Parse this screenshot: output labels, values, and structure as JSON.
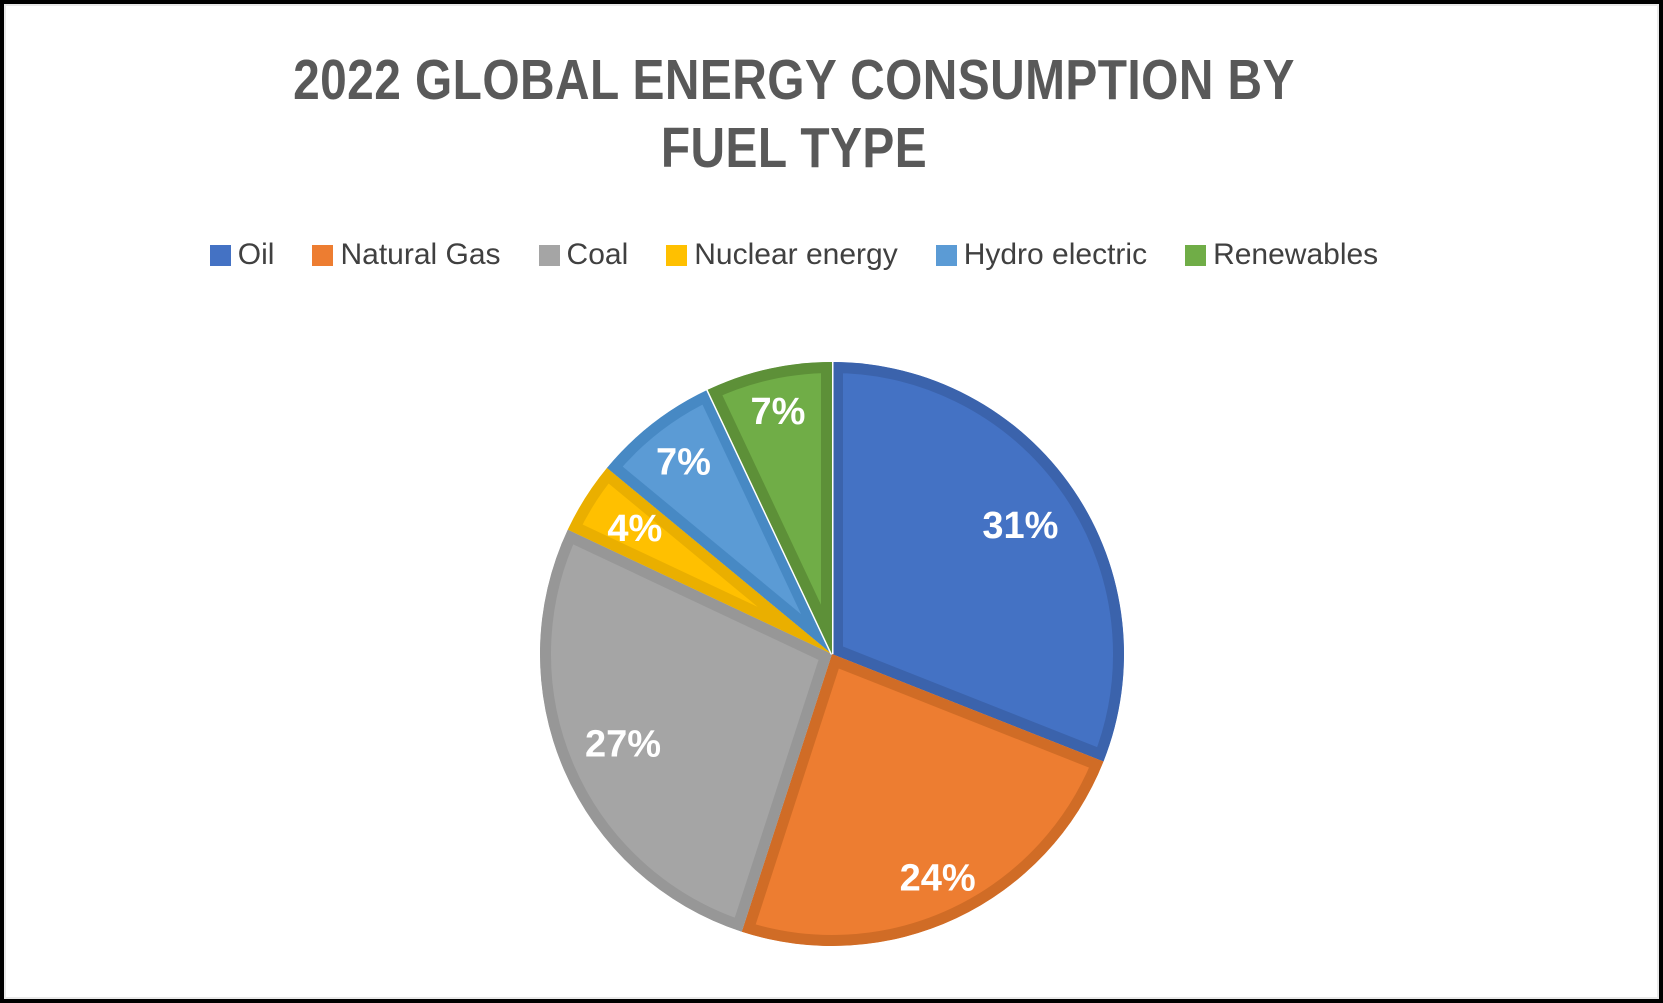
{
  "frame": {
    "border_color": "#000000",
    "inner_edge_color": "#e9e9e9",
    "background": "#ffffff"
  },
  "chart": {
    "title_lines": [
      "2022 GLOBAL ENERGY CONSUMPTION BY",
      "FUEL TYPE"
    ],
    "title_color": "#595959"
  },
  "chart_data": {
    "type": "pie",
    "title": "2022 GLOBAL ENERGY CONSUMPTION BY FUEL TYPE",
    "categories": [
      "Oil",
      "Natural Gas",
      "Coal",
      "Nuclear energy",
      "Hydro electric",
      "Renewables"
    ],
    "values": [
      31,
      24,
      27,
      4,
      7,
      7
    ],
    "unit": "%",
    "data_labels": [
      "31%",
      "24%",
      "27%",
      "4%",
      "7%",
      "7%"
    ],
    "colors": [
      "#4472C4",
      "#ED7D31",
      "#A5A5A5",
      "#FFC000",
      "#5B9BD5",
      "#70AD47"
    ],
    "rim_colors": [
      "#3B63AC",
      "#D06C26",
      "#979797",
      "#EAAF00",
      "#4789C4",
      "#5D9038"
    ],
    "label_color": "#FFFFFF",
    "label_radius": [
      0.78,
      0.85,
      0.78,
      0.8,
      0.83,
      0.85
    ],
    "start_angle_deg": 0,
    "direction": "clockwise",
    "legend_position": "top",
    "white_outline_slices": [
      5
    ],
    "geometry": {
      "radius": 292,
      "rim_width": 11
    }
  }
}
